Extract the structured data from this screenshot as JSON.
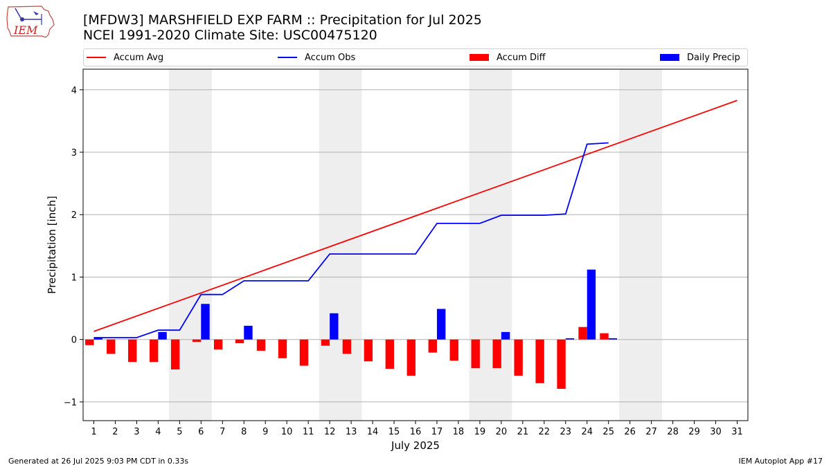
{
  "header": {
    "title_line1": "[MFDW3] MARSHFIELD EXP FARM :: Precipitation for Jul 2025",
    "title_line2": "NCEI 1991-2020 Climate Site: USC00475120",
    "logo_text": "IEM"
  },
  "colors": {
    "avg": "#ff0000",
    "obs": "#0000ff",
    "diff": "#ff0000",
    "daily": "#0000ff",
    "weekend": "#eeeeee",
    "grid": "#b0b0b0"
  },
  "legend": [
    {
      "label": "Accum Avg",
      "kind": "line",
      "color": "#ff0000"
    },
    {
      "label": "Accum Obs",
      "kind": "line",
      "color": "#0000ff"
    },
    {
      "label": "Accum Diff",
      "kind": "patch",
      "color": "#ff0000"
    },
    {
      "label": "Daily Precip",
      "kind": "patch",
      "color": "#0000ff"
    }
  ],
  "chart_data": {
    "type": "bar",
    "title": "[MFDW3] MARSHFIELD EXP FARM :: Precipitation for Jul 2025",
    "subtitle": "NCEI 1991-2020 Climate Site: USC00475120",
    "xlabel": "July 2025",
    "ylabel": "Precipitation [inch]",
    "xlim": [
      0.5,
      31.5
    ],
    "ylim": [
      -1.3,
      4.33
    ],
    "yticks": [
      -1,
      0,
      1,
      2,
      3,
      4
    ],
    "ytick_labels": [
      "−1",
      "0",
      "1",
      "2",
      "3",
      "4"
    ],
    "xticks": [
      "1",
      "2",
      "3",
      "4",
      "5",
      "6",
      "7",
      "8",
      "9",
      "10",
      "11",
      "12",
      "13",
      "14",
      "15",
      "16",
      "17",
      "18",
      "19",
      "20",
      "21",
      "22",
      "23",
      "24",
      "25",
      "26",
      "27",
      "28",
      "29",
      "30",
      "31"
    ],
    "grid": "horizontal",
    "legend_position": "top",
    "weekend_spans": [
      [
        4.5,
        6.5
      ],
      [
        11.5,
        13.5
      ],
      [
        18.5,
        20.5
      ],
      [
        25.5,
        27.5
      ]
    ],
    "series": [
      {
        "name": "Accum Avg",
        "kind": "line",
        "color": "#ff0000",
        "x": [
          1,
          31
        ],
        "values": [
          0.13,
          3.83
        ]
      },
      {
        "name": "Accum Obs",
        "kind": "line",
        "color": "#0000ff",
        "x": [
          1,
          2,
          3,
          4,
          5,
          6,
          7,
          8,
          9,
          10,
          11,
          12,
          13,
          14,
          15,
          16,
          17,
          18,
          19,
          20,
          21,
          22,
          23,
          24,
          25
        ],
        "values": [
          0.03,
          0.03,
          0.03,
          0.15,
          0.15,
          0.72,
          0.72,
          0.94,
          0.94,
          0.94,
          0.94,
          1.37,
          1.37,
          1.37,
          1.37,
          1.37,
          1.86,
          1.86,
          1.86,
          1.99,
          1.99,
          1.99,
          2.01,
          3.13,
          3.15
        ]
      },
      {
        "name": "Accum Diff",
        "kind": "bar",
        "color": "#ff0000",
        "x": [
          1,
          2,
          3,
          4,
          5,
          6,
          7,
          8,
          9,
          10,
          11,
          12,
          13,
          14,
          15,
          16,
          17,
          18,
          19,
          20,
          21,
          22,
          23,
          24,
          25
        ],
        "values": [
          -0.09,
          -0.23,
          -0.36,
          -0.36,
          -0.48,
          -0.04,
          -0.16,
          -0.06,
          -0.18,
          -0.3,
          -0.42,
          -0.1,
          -0.23,
          -0.35,
          -0.47,
          -0.58,
          -0.21,
          -0.34,
          -0.46,
          -0.46,
          -0.58,
          -0.7,
          -0.79,
          0.2,
          0.1
        ]
      },
      {
        "name": "Daily Precip",
        "kind": "bar",
        "color": "#0000ff",
        "x": [
          1,
          2,
          3,
          4,
          5,
          6,
          7,
          8,
          9,
          10,
          11,
          12,
          13,
          14,
          15,
          16,
          17,
          18,
          19,
          20,
          21,
          22,
          23,
          24,
          25
        ],
        "values": [
          0.03,
          0,
          0,
          0.12,
          0,
          0.57,
          0,
          0.22,
          0,
          0,
          0,
          0.42,
          0,
          0,
          0,
          0,
          0.49,
          0,
          0,
          0.12,
          0,
          0,
          0.02,
          1.12,
          0.02
        ]
      }
    ]
  },
  "footer": {
    "left": "Generated at 26 Jul 2025 9:03 PM CDT in 0.33s",
    "right": "IEM Autoplot App #17"
  }
}
